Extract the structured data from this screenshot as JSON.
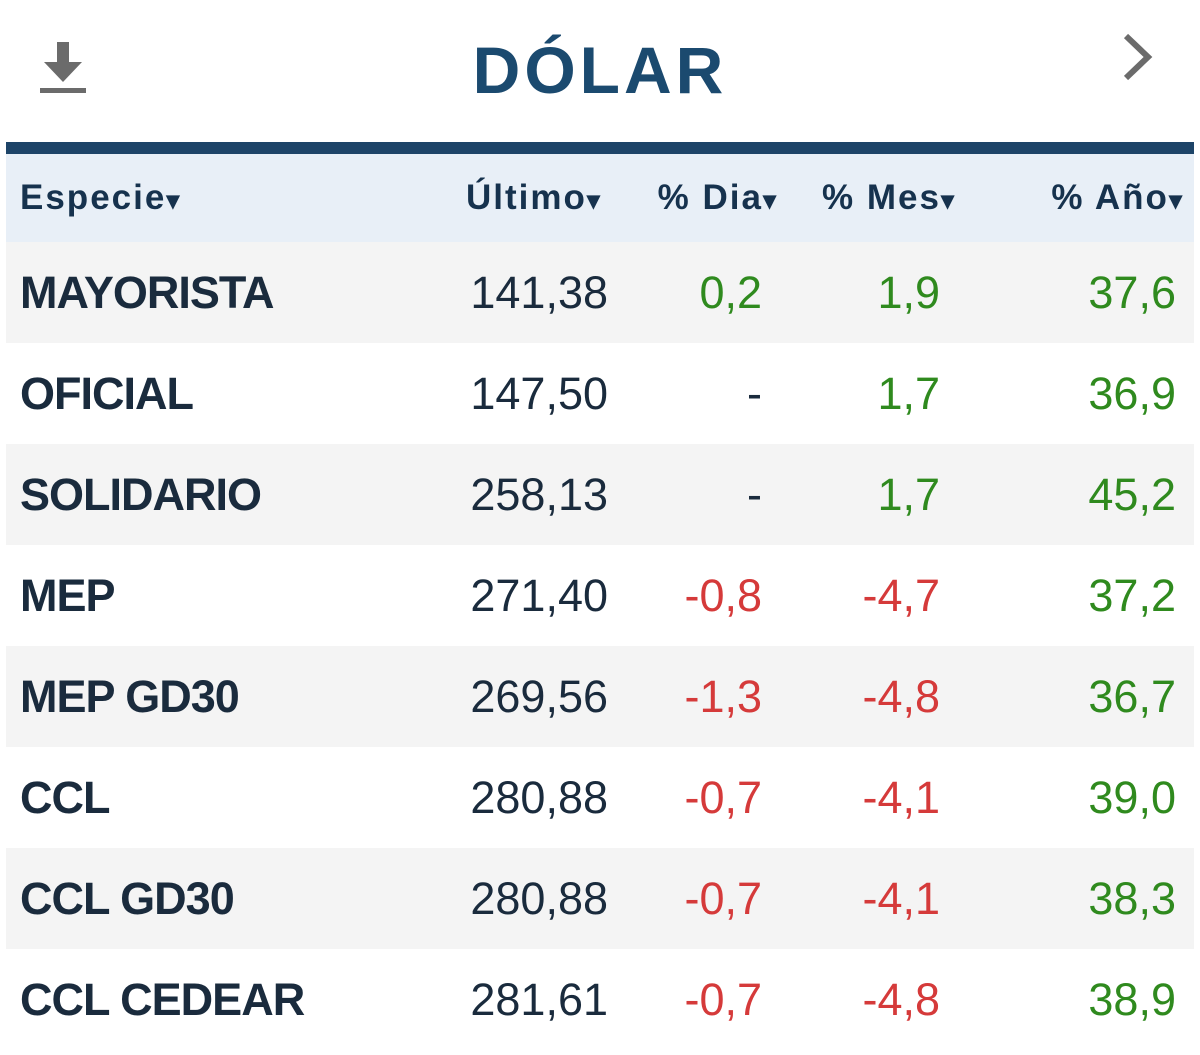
{
  "header": {
    "title": "DÓLAR",
    "download_icon": "download-icon",
    "next_icon": "chevron-right-icon"
  },
  "colors": {
    "title": "#1b4a6f",
    "rule": "#1d4468",
    "header_bg": "#e8eff7",
    "positive": "#2f8a1e",
    "negative": "#d53a3a"
  },
  "table": {
    "columns": [
      {
        "label": "Especie",
        "arrow": "▾"
      },
      {
        "label": "Último",
        "arrow": "▾"
      },
      {
        "label": "% Dia",
        "arrow": "▾"
      },
      {
        "label": "% Mes",
        "arrow": "▾"
      },
      {
        "label": "% Año",
        "arrow": "▾"
      }
    ],
    "rows": [
      {
        "especie": "MAYORISTA",
        "ultimo": "141,38",
        "dia": "0,2",
        "dia_sign": "pos",
        "mes": "1,9",
        "mes_sign": "pos",
        "ano": "37,6",
        "ano_sign": "pos"
      },
      {
        "especie": "OFICIAL",
        "ultimo": "147,50",
        "dia": "-",
        "dia_sign": "neutral",
        "mes": "1,7",
        "mes_sign": "pos",
        "ano": "36,9",
        "ano_sign": "pos"
      },
      {
        "especie": "SOLIDARIO",
        "ultimo": "258,13",
        "dia": "-",
        "dia_sign": "neutral",
        "mes": "1,7",
        "mes_sign": "pos",
        "ano": "45,2",
        "ano_sign": "pos"
      },
      {
        "especie": "MEP",
        "ultimo": "271,40",
        "dia": "-0,8",
        "dia_sign": "neg",
        "mes": "-4,7",
        "mes_sign": "neg",
        "ano": "37,2",
        "ano_sign": "pos"
      },
      {
        "especie": "MEP GD30",
        "ultimo": "269,56",
        "dia": "-1,3",
        "dia_sign": "neg",
        "mes": "-4,8",
        "mes_sign": "neg",
        "ano": "36,7",
        "ano_sign": "pos"
      },
      {
        "especie": "CCL",
        "ultimo": "280,88",
        "dia": "-0,7",
        "dia_sign": "neg",
        "mes": "-4,1",
        "mes_sign": "neg",
        "ano": "39,0",
        "ano_sign": "pos"
      },
      {
        "especie": "CCL GD30",
        "ultimo": "280,88",
        "dia": "-0,7",
        "dia_sign": "neg",
        "mes": "-4,1",
        "mes_sign": "neg",
        "ano": "38,3",
        "ano_sign": "pos"
      },
      {
        "especie": "CCL CEDEAR",
        "ultimo": "281,61",
        "dia": "-0,7",
        "dia_sign": "neg",
        "mes": "-4,8",
        "mes_sign": "neg",
        "ano": "38,9",
        "ano_sign": "pos"
      }
    ]
  }
}
